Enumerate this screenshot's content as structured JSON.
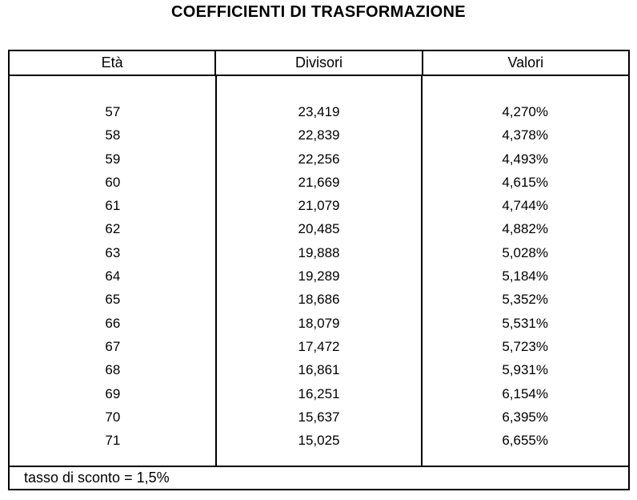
{
  "title": "COEFFICIENTI DI TRASFORMAZIONE",
  "colors": {
    "border": "#000000",
    "background": "#ffffff",
    "text": "#000000"
  },
  "table": {
    "headers": {
      "eta": "Età",
      "divisore": "Divisori",
      "valore": "Valori"
    },
    "rows": [
      {
        "eta": "57",
        "divisore": "23,419",
        "valore": "4,270%"
      },
      {
        "eta": "58",
        "divisore": "22,839",
        "valore": "4,378%"
      },
      {
        "eta": "59",
        "divisore": "22,256",
        "valore": "4,493%"
      },
      {
        "eta": "60",
        "divisore": "21,669",
        "valore": "4,615%"
      },
      {
        "eta": "61",
        "divisore": "21,079",
        "valore": "4,744%"
      },
      {
        "eta": "62",
        "divisore": "20,485",
        "valore": "4,882%"
      },
      {
        "eta": "63",
        "divisore": "19,888",
        "valore": "5,028%"
      },
      {
        "eta": "64",
        "divisore": "19,289",
        "valore": "5,184%"
      },
      {
        "eta": "65",
        "divisore": "18,686",
        "valore": "5,352%"
      },
      {
        "eta": "66",
        "divisore": "18,079",
        "valore": "5,531%"
      },
      {
        "eta": "67",
        "divisore": "17,472",
        "valore": "5,723%"
      },
      {
        "eta": "68",
        "divisore": "16,861",
        "valore": "5,931%"
      },
      {
        "eta": "69",
        "divisore": "16,251",
        "valore": "6,154%"
      },
      {
        "eta": "70",
        "divisore": "15,637",
        "valore": "6,395%"
      },
      {
        "eta": "71",
        "divisore": "15,025",
        "valore": "6,655%"
      }
    ],
    "footer": "tasso di sconto = 1,5%"
  }
}
